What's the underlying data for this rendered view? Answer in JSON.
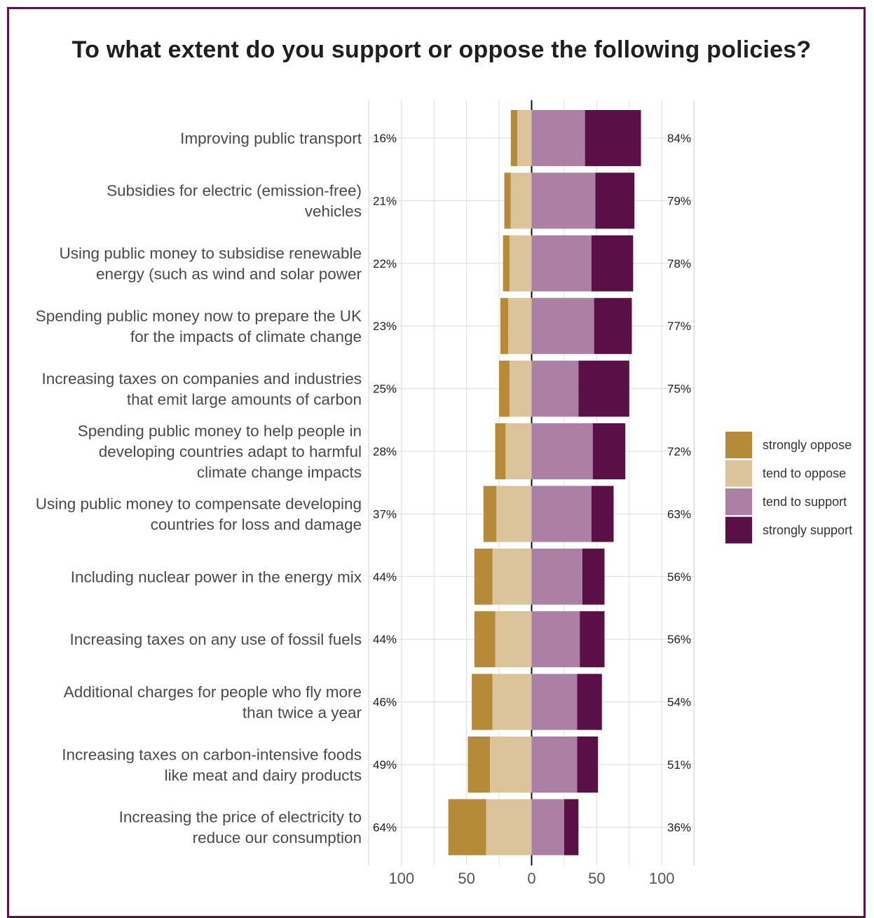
{
  "title": "To what extent do you support or oppose the following policies?",
  "colors": {
    "strongly_oppose": "#b58b3a",
    "tend_to_oppose": "#dbc39a",
    "tend_to_support": "#ac7fa5",
    "strongly_support": "#5a0f47",
    "grid": "#dcdcdc",
    "frame": "#5a1646"
  },
  "chart_data": {
    "type": "bar",
    "orientation": "horizontal-diverging",
    "title": "To what extent do you support or oppose the following policies?",
    "xlabel": "",
    "ylabel": "",
    "xlim": [
      -100,
      100
    ],
    "x_ticks": [
      -100,
      -50,
      0,
      50,
      100
    ],
    "x_tick_labels": [
      "100",
      "50",
      "0",
      "50",
      "100"
    ],
    "grid": true,
    "legend_position": "right",
    "categories": [
      [
        "Improving public transport"
      ],
      [
        "Subsidies for electric (emission-free)",
        "vehicles"
      ],
      [
        "Using public money to subsidise renewable",
        "energy (such as wind and solar power"
      ],
      [
        "Spending public money now to prepare the UK",
        "for the impacts of climate change"
      ],
      [
        "Increasing taxes on companies and industries",
        "that emit large amounts of carbon"
      ],
      [
        "Spending public money to help people in",
        "developing countries adapt to harmful",
        "climate change impacts"
      ],
      [
        "Using public money to compensate developing",
        "countries for loss and damage"
      ],
      [
        "Including nuclear power in the energy mix"
      ],
      [
        "Increasing taxes on any use of fossil fuels"
      ],
      [
        "Additional charges for people who fly more",
        "than twice a year"
      ],
      [
        "Increasing taxes on carbon-intensive foods",
        "like meat and dairy products"
      ],
      [
        "Increasing the price of electricity to",
        "reduce our consumption"
      ]
    ],
    "oppose_totals": [
      "16%",
      "21%",
      "22%",
      "23%",
      "25%",
      "28%",
      "37%",
      "44%",
      "44%",
      "46%",
      "49%",
      "64%"
    ],
    "support_totals": [
      "84%",
      "79%",
      "78%",
      "77%",
      "75%",
      "72%",
      "63%",
      "56%",
      "56%",
      "54%",
      "51%",
      "36%"
    ],
    "series": [
      {
        "name": "strongly oppose",
        "values": [
          5,
          5,
          5,
          6,
          8,
          8,
          10,
          14,
          16,
          16,
          17,
          29
        ]
      },
      {
        "name": "tend to oppose",
        "values": [
          11,
          16,
          17,
          18,
          17,
          20,
          27,
          30,
          28,
          30,
          32,
          35
        ]
      },
      {
        "name": "tend to support",
        "values": [
          41,
          49,
          46,
          48,
          36,
          47,
          46,
          39,
          37,
          35,
          35,
          25
        ]
      },
      {
        "name": "strongly support",
        "values": [
          43,
          30,
          32,
          29,
          39,
          25,
          17,
          17,
          19,
          19,
          16,
          11
        ]
      }
    ]
  }
}
